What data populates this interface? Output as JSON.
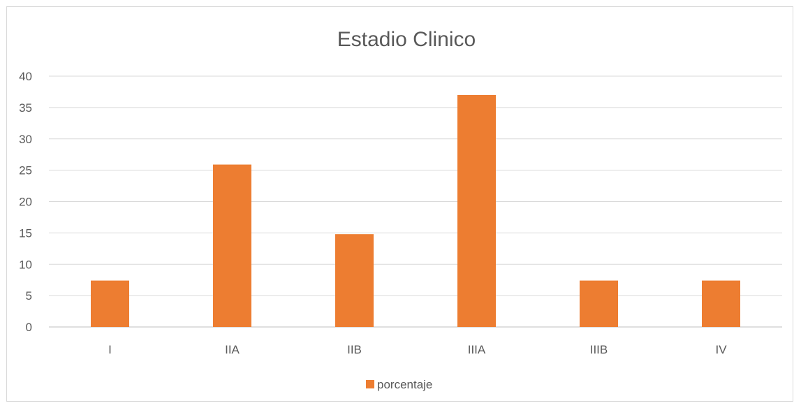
{
  "chart_data": {
    "type": "bar",
    "title": "Estadio Clinico",
    "xlabel": "",
    "ylabel": "",
    "categories": [
      "I",
      "IIA",
      "IIB",
      "IIIA",
      "IIIB",
      "IV"
    ],
    "series": [
      {
        "name": "porcentaje",
        "values": [
          7.4,
          25.9,
          14.8,
          37.0,
          7.4,
          7.4
        ],
        "color": "#ED7D31"
      }
    ],
    "ylim": [
      0,
      40
    ],
    "yticks": [
      0,
      5,
      10,
      15,
      20,
      25,
      30,
      35,
      40
    ],
    "grid": true,
    "legend_position": "bottom"
  }
}
